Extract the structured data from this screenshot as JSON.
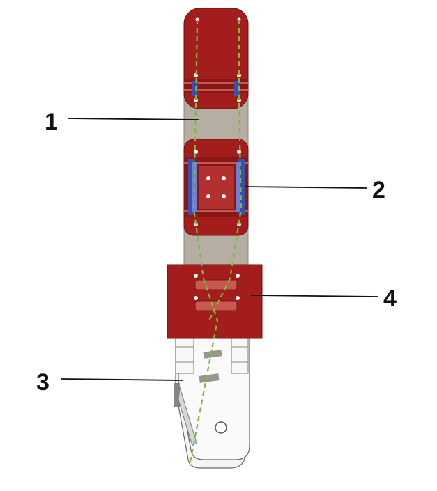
{
  "labels": {
    "one": "1",
    "two": "2",
    "three": "3",
    "four": "4"
  },
  "colors": {
    "background": "#ffffff",
    "red_part": "#a31d1d",
    "red_dark": "#7d1313",
    "red_light": "#c05a52",
    "grey_bar": "#b6aea3",
    "blue_part": "#3a4fb0",
    "white_part": "#f5f5f5",
    "outline": "#555555",
    "tendon": "#7cbb3c",
    "leader": "#111111"
  }
}
